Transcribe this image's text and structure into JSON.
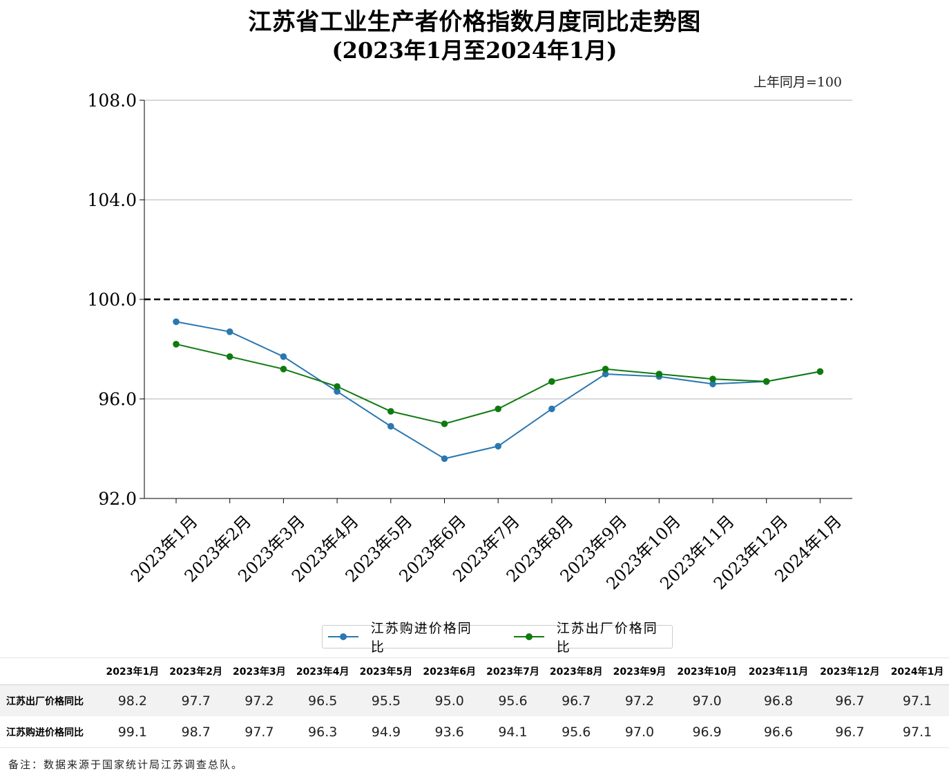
{
  "title_line1": "江苏省工业生产者价格指数月度同比走势图",
  "title_line2": "(2023年1月至2024年1月)",
  "unit_note": "上年同月=100",
  "chart_data": {
    "type": "line",
    "categories": [
      "2023年1月",
      "2023年2月",
      "2023年3月",
      "2023年4月",
      "2023年5月",
      "2023年6月",
      "2023年7月",
      "2023年8月",
      "2023年9月",
      "2023年10月",
      "2023年11月",
      "2023年12月",
      "2024年1月"
    ],
    "series": [
      {
        "name": "江苏购进价格同比",
        "color": "#2b77b0",
        "values": [
          99.1,
          98.7,
          97.7,
          96.3,
          94.9,
          93.6,
          94.1,
          95.6,
          97.0,
          96.9,
          96.6,
          96.7,
          97.1
        ]
      },
      {
        "name": "江苏出厂价格同比",
        "color": "#0f7a0f",
        "values": [
          98.2,
          97.7,
          97.2,
          96.5,
          95.5,
          95.0,
          95.6,
          96.7,
          97.2,
          97.0,
          96.8,
          96.7,
          97.1
        ]
      }
    ],
    "ylim": [
      92,
      108
    ],
    "yticks": [
      92.0,
      96.0,
      100.0,
      104.0,
      108.0
    ],
    "ytick_labels": [
      "92.0",
      "96.0",
      "100.0",
      "104.0",
      "108.0"
    ],
    "reference_line": 100,
    "grid": true,
    "legend_position": "bottom-center"
  },
  "table": {
    "columns": [
      "2023年1月",
      "2023年2月",
      "2023年3月",
      "2023年4月",
      "2023年5月",
      "2023年6月",
      "2023年7月",
      "2023年8月",
      "2023年9月",
      "2023年10月",
      "2023年11月",
      "2023年12月",
      "2024年1月"
    ],
    "rows": [
      {
        "label": "江苏出厂价格同比",
        "values": [
          "98.2",
          "97.7",
          "97.2",
          "96.5",
          "95.5",
          "95.0",
          "95.6",
          "96.7",
          "97.2",
          "97.0",
          "96.8",
          "96.7",
          "97.1"
        ]
      },
      {
        "label": "江苏购进价格同比",
        "values": [
          "99.1",
          "98.7",
          "97.7",
          "96.3",
          "94.9",
          "93.6",
          "94.1",
          "95.6",
          "97.0",
          "96.9",
          "96.6",
          "96.7",
          "97.1"
        ]
      }
    ]
  },
  "footnote": "备注：数据来源于国家统计局江苏调查总队。"
}
